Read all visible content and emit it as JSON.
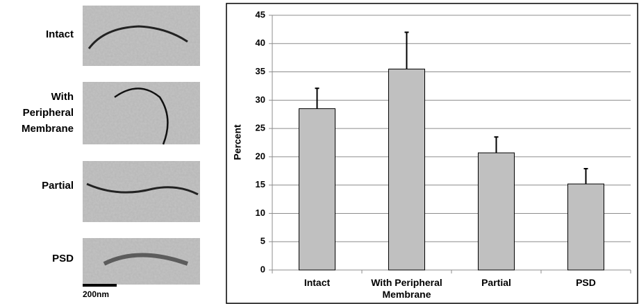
{
  "micrographs": {
    "labels": [
      "Intact",
      "With Peripheral Membrane",
      "Partial",
      "PSD"
    ],
    "scale_bar": "200nm"
  },
  "chart_data": {
    "type": "bar",
    "y_label": "Percent",
    "categories": [
      "Intact",
      "With Peripheral Membrane",
      "Partial",
      "PSD"
    ],
    "values": [
      28.5,
      35.5,
      20.7,
      15.2
    ],
    "errors": [
      3.6,
      6.5,
      2.8,
      2.7
    ],
    "color": "#c0c0c0",
    "ylim": [
      0,
      45
    ],
    "yticks": [
      0,
      5,
      10,
      15,
      20,
      25,
      30,
      35,
      40,
      45
    ],
    "grid": true
  }
}
